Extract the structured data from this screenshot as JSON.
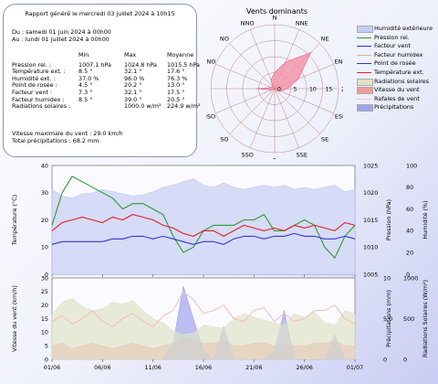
{
  "summary": {
    "title": "Rapport généré le mercredi 03 juillet 2024 à 10h15",
    "period_from": "Du : samedi 01 juin 2024 à 00h00",
    "period_to": "Au : lundi 01 juillet 2024 à 00h00",
    "headers": [
      "Min",
      "Max",
      "Moyenne"
    ],
    "rows": [
      {
        "label": "Pression rel. :",
        "min": "1007.1 hPa",
        "max": "1024.8 hPa",
        "avg": "1015.5 hPa"
      },
      {
        "label": "Température ext. :",
        "min": "8.5 °",
        "max": "32.1 °",
        "avg": "17.6 °"
      },
      {
        "label": "Humidité ext. :",
        "min": "37.0 %",
        "max": "96.0 %",
        "avg": "76.3 %"
      },
      {
        "label": "Point de rosée :",
        "min": "4.5 °",
        "max": "20.2 °",
        "avg": "13.0 °"
      },
      {
        "label": "Facteur vent :",
        "min": "7.3 °",
        "max": "32.1 °",
        "avg": "17.5 °"
      },
      {
        "label": "Facteur humidex :",
        "min": "8.5 °",
        "max": "39.0 °",
        "avg": "20.5 °"
      },
      {
        "label": "Radiations solaires :",
        "min": "",
        "max": "1000.0 w/m²",
        "avg": "224.9 w/m²"
      }
    ],
    "wind_max": "Vitesse maximale du vent : 29.0 km/h",
    "precip_total": "Total précipitations : 68.2 mm"
  },
  "wind_rose": {
    "title": "Vents dominants",
    "directions": [
      "N",
      "NNE",
      "NE",
      "ENE",
      "E",
      "ESE",
      "SE",
      "SSE",
      "S",
      "SSO",
      "SO",
      "OSO",
      "O",
      "ONO",
      "NO",
      "NNO"
    ],
    "ring_labels": [
      "0",
      "5",
      "10",
      "15",
      "20"
    ],
    "ring_max": 20,
    "values": [
      5,
      9,
      16,
      8,
      4,
      2,
      1,
      0,
      0,
      0,
      0,
      1,
      6,
      1,
      1,
      3
    ],
    "fill_color": "#f48aa0",
    "ring_color": "#c08080"
  },
  "legend": [
    {
      "label": "Humidité extérieure",
      "color": "#c6cdf4",
      "kind": "area"
    },
    {
      "label": "Pression rel.",
      "color": "#2e9a2e",
      "kind": "line"
    },
    {
      "label": "Facteur vent",
      "color": "#3030c8",
      "kind": "line"
    },
    {
      "label": "Facteur humidex",
      "color": "#f4a6a6",
      "kind": "line"
    },
    {
      "label": "Point de rosée",
      "color": "#3535d8",
      "kind": "line"
    },
    {
      "label": "Température ext.",
      "color": "#e02020",
      "kind": "line"
    },
    {
      "label": "Radiations solaires",
      "color": "#dfe3c8",
      "kind": "area"
    },
    {
      "label": "Vitesse du vent",
      "color": "#f29999",
      "kind": "area"
    },
    {
      "label": "Rafales de vent",
      "color": "#f2c0c0",
      "kind": "line"
    },
    {
      "label": "Précipitations",
      "color": "#9ea4ee",
      "kind": "area"
    }
  ],
  "chart_data": [
    {
      "type": "line",
      "x_ticks": [
        "01/06",
        "06/06",
        "11/06",
        "16/06",
        "21/06",
        "26/06",
        "01/07"
      ],
      "ylabel": "Température (°C)",
      "ylim": [
        0,
        40
      ],
      "y_ticks": [
        "0",
        "10",
        "20",
        "30",
        "40"
      ],
      "y2label": "Pression (hPa)",
      "y2lim": [
        1005,
        1025
      ],
      "y2_ticks": [
        "1005",
        "1010",
        "1015",
        "1020",
        "1025"
      ],
      "y3label": "Humidité (%)",
      "y3lim": [
        0,
        100
      ],
      "y3_ticks": [
        "0",
        "20",
        "40",
        "60",
        "80",
        "100"
      ],
      "series": [
        {
          "name": "Pression rel.",
          "axis": "y2",
          "values": [
            1014,
            1020,
            1023,
            1022,
            1021,
            1020,
            1019,
            1017,
            1018,
            1018,
            1017,
            1016,
            1012,
            1009,
            1010,
            1013,
            1014,
            1014,
            1014,
            1015,
            1015,
            1016,
            1013,
            1013,
            1014,
            1015,
            1014,
            1010,
            1008,
            1012,
            1014
          ]
        },
        {
          "name": "Température ext.",
          "axis": "y",
          "values": [
            16,
            19,
            20,
            21,
            20,
            19,
            21,
            20,
            22,
            21,
            20,
            18,
            17,
            15,
            14,
            16,
            16,
            14,
            16,
            18,
            17,
            16,
            17,
            16,
            18,
            17,
            18,
            17,
            16,
            19,
            18
          ]
        },
        {
          "name": "Point de rosée",
          "axis": "y",
          "values": [
            11,
            12,
            12,
            12,
            12,
            12,
            13,
            13,
            14,
            14,
            13,
            14,
            13,
            12,
            11,
            12,
            12,
            11,
            13,
            14,
            14,
            13,
            14,
            14,
            15,
            14,
            14,
            13,
            13,
            14,
            13
          ]
        },
        {
          "name": "Humidité extérieure",
          "axis": "y3",
          "values": [
            78,
            72,
            70,
            74,
            75,
            78,
            76,
            74,
            72,
            73,
            76,
            80,
            82,
            85,
            88,
            82,
            80,
            84,
            80,
            78,
            80,
            82,
            80,
            82,
            78,
            80,
            78,
            80,
            82,
            76,
            78
          ]
        }
      ]
    },
    {
      "type": "area",
      "x_ticks": [
        "01/06",
        "06/06",
        "11/06",
        "16/06",
        "21/06",
        "26/06",
        "01/07"
      ],
      "ylabel": "Vitesse du vent (km/h)",
      "ylim": [
        0,
        30
      ],
      "y_ticks": [
        "0",
        "5",
        "10",
        "15",
        "20",
        "25",
        "30"
      ],
      "y2label": "Précipitations (mm)",
      "y2lim": [
        0,
        10
      ],
      "y2_ticks": [
        "0",
        "5.0",
        "10"
      ],
      "y3label": "Radiations Solaires (W/m²)",
      "y3lim": [
        0,
        1000
      ],
      "y3_ticks": [
        "0",
        "500",
        "1000"
      ],
      "series": [
        {
          "name": "Vitesse du vent",
          "axis": "y",
          "values": [
            5,
            6,
            4,
            5,
            6,
            5,
            4,
            5,
            6,
            5,
            4,
            5,
            6,
            8,
            7,
            6,
            6,
            7,
            5,
            5,
            6,
            6,
            5,
            6,
            5,
            5,
            6,
            6,
            7,
            5,
            5
          ]
        },
        {
          "name": "Rafales de vent",
          "axis": "y",
          "values": [
            14,
            16,
            13,
            15,
            18,
            14,
            12,
            15,
            17,
            14,
            12,
            16,
            18,
            25,
            22,
            17,
            18,
            20,
            15,
            14,
            18,
            19,
            14,
            17,
            14,
            15,
            18,
            18,
            20,
            15,
            13
          ]
        },
        {
          "name": "Précipitations",
          "axis": "y2",
          "values": [
            0,
            0,
            0,
            0,
            0,
            0,
            0,
            0,
            0,
            0,
            0,
            0,
            2,
            9,
            5,
            1,
            0,
            4,
            0,
            0,
            0,
            0,
            1,
            6,
            0,
            0,
            0,
            0,
            3,
            0,
            0
          ]
        },
        {
          "name": "Radiations solaires",
          "axis": "y3",
          "values": [
            550,
            700,
            750,
            650,
            600,
            620,
            700,
            680,
            720,
            600,
            500,
            450,
            350,
            300,
            320,
            420,
            400,
            380,
            500,
            560,
            520,
            480,
            450,
            420,
            560,
            520,
            580,
            450,
            420,
            600,
            560
          ]
        }
      ]
    }
  ]
}
